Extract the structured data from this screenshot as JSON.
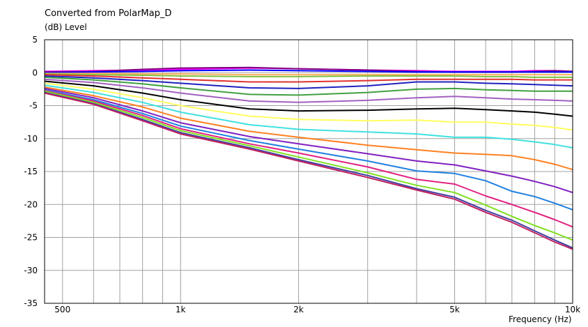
{
  "chart_data": {
    "type": "line",
    "title": "Converted from PolarMap_D",
    "ylabel": "(dB)  Level",
    "xlabel": "Frequency  (Hz)",
    "x_scale": "log",
    "xlim": [
      450,
      10000
    ],
    "ylim": [
      -35,
      5
    ],
    "grid": true,
    "yticks": [
      5,
      0,
      -5,
      -10,
      -15,
      -20,
      -25,
      -30,
      -35
    ],
    "xticks": [
      {
        "value": 500,
        "label": "500"
      },
      {
        "value": 1000,
        "label": "1k"
      },
      {
        "value": 2000,
        "label": "2k"
      },
      {
        "value": 5000,
        "label": "5k"
      },
      {
        "value": 10000,
        "label": "10k"
      }
    ],
    "x": [
      450,
      600,
      800,
      1000,
      1500,
      2000,
      3000,
      4000,
      5000,
      6000,
      7000,
      8000,
      9000,
      10000
    ],
    "series": [
      {
        "color": "#ff00ff",
        "values": [
          0.2,
          0.3,
          0.4,
          0.5,
          0.7,
          0.6,
          0.4,
          0.3,
          0.2,
          0.2,
          0.2,
          0.3,
          0.3,
          0.2
        ]
      },
      {
        "color": "#800080",
        "values": [
          0.1,
          0.2,
          0.5,
          0.7,
          0.8,
          0.6,
          0.4,
          0.2,
          0.1,
          0.1,
          0.1,
          0.2,
          0.3,
          0.2
        ]
      },
      {
        "color": "#0000ff",
        "values": [
          0.0,
          0.1,
          0.2,
          0.3,
          0.4,
          0.3,
          0.2,
          0.1,
          0.1,
          0.1,
          0.1,
          0.1,
          0.1,
          0.1
        ]
      },
      {
        "color": "#ffb060",
        "values": [
          -0.1,
          -0.1,
          -0.2,
          -0.2,
          -0.3,
          -0.3,
          -0.3,
          -0.3,
          -0.3,
          -0.3,
          -0.3,
          -0.3,
          -0.3,
          -0.3
        ]
      },
      {
        "color": "#80c040",
        "values": [
          -0.2,
          -0.3,
          -0.4,
          -0.5,
          -0.6,
          -0.6,
          -0.5,
          -0.5,
          -0.5,
          -0.6,
          -0.6,
          -0.7,
          -0.7,
          -0.7
        ]
      },
      {
        "color": "#e03030",
        "values": [
          -0.3,
          -0.5,
          -0.8,
          -1.0,
          -1.4,
          -1.4,
          -1.2,
          -1.0,
          -1.0,
          -1.0,
          -1.0,
          -1.1,
          -1.1,
          -1.1
        ]
      },
      {
        "color": "#2020c0",
        "values": [
          -0.5,
          -0.8,
          -1.2,
          -1.6,
          -2.3,
          -2.4,
          -2.0,
          -1.4,
          -1.4,
          -1.6,
          -1.7,
          -1.8,
          -1.9,
          -2.0
        ]
      },
      {
        "color": "#40a040",
        "values": [
          -0.7,
          -1.1,
          -1.7,
          -2.3,
          -3.3,
          -3.4,
          -3.0,
          -2.5,
          -2.4,
          -2.6,
          -2.7,
          -2.8,
          -2.8,
          -2.8
        ]
      },
      {
        "color": "#a060c0",
        "values": [
          -1.0,
          -1.5,
          -2.3,
          -3.1,
          -4.3,
          -4.5,
          -4.2,
          -3.8,
          -3.6,
          -3.8,
          -4.0,
          -4.1,
          -4.2,
          -4.3
        ]
      },
      {
        "color": "#000000",
        "values": [
          -1.3,
          -2.0,
          -3.1,
          -4.1,
          -5.5,
          -5.8,
          -5.7,
          -5.5,
          -5.4,
          -5.6,
          -5.8,
          -6.0,
          -6.3,
          -6.6
        ]
      },
      {
        "color": "#ffff60",
        "values": [
          -1.6,
          -2.5,
          -3.8,
          -5.0,
          -6.6,
          -7.1,
          -7.3,
          -7.2,
          -7.5,
          -7.5,
          -7.8,
          -8.0,
          -8.3,
          -8.7
        ]
      },
      {
        "color": "#40e0e0",
        "values": [
          -1.9,
          -3.0,
          -4.5,
          -6.0,
          -7.9,
          -8.6,
          -9.0,
          -9.3,
          -9.8,
          -9.8,
          -10.1,
          -10.5,
          -10.9,
          -11.4
        ]
      },
      {
        "color": "#ff8020",
        "values": [
          -2.2,
          -3.5,
          -5.2,
          -6.9,
          -8.9,
          -9.8,
          -11.0,
          -11.7,
          -12.2,
          -12.4,
          -12.6,
          -13.2,
          -13.9,
          -14.7
        ]
      },
      {
        "color": "#8020c0",
        "values": [
          -2.4,
          -3.8,
          -5.8,
          -7.6,
          -9.7,
          -10.8,
          -12.3,
          -13.4,
          -14.0,
          -14.9,
          -15.7,
          -16.5,
          -17.3,
          -18.2
        ]
      },
      {
        "color": "#2080e0",
        "values": [
          -2.6,
          -4.1,
          -6.2,
          -8.1,
          -10.3,
          -11.6,
          -13.4,
          -14.9,
          -15.3,
          -16.4,
          -18.0,
          -18.8,
          -19.8,
          -20.8
        ]
      },
      {
        "color": "#e02080",
        "values": [
          -2.7,
          -4.3,
          -6.5,
          -8.5,
          -10.8,
          -12.2,
          -14.3,
          -16.2,
          -16.9,
          -18.7,
          -20.0,
          -21.2,
          -22.3,
          -23.4
        ]
      },
      {
        "color": "#80e020",
        "values": [
          -2.8,
          -4.5,
          -6.8,
          -8.8,
          -11.1,
          -12.8,
          -15.2,
          -17.1,
          -18.2,
          -20.1,
          -21.8,
          -23.2,
          -24.3,
          -25.4
        ]
      },
      {
        "color": "#4040a0",
        "values": [
          -3.0,
          -4.7,
          -7.1,
          -9.1,
          -11.4,
          -13.2,
          -15.6,
          -17.6,
          -18.9,
          -20.9,
          -22.4,
          -24.0,
          -25.4,
          -26.6
        ]
      },
      {
        "color": "#c02060",
        "values": [
          -3.1,
          -4.8,
          -7.3,
          -9.3,
          -11.6,
          -13.4,
          -15.9,
          -17.8,
          -19.2,
          -21.2,
          -22.7,
          -24.3,
          -25.7,
          -26.8
        ]
      }
    ]
  }
}
